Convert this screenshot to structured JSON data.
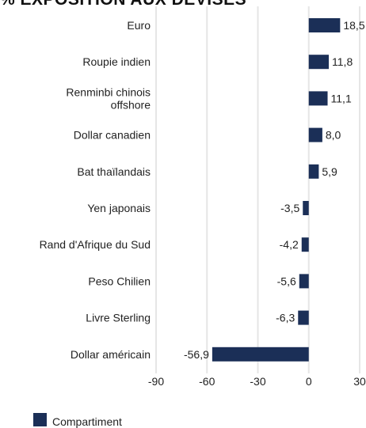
{
  "chart_data": {
    "type": "bar",
    "orientation": "horizontal",
    "title": "% EXPOSITION AUX DEVISES",
    "categories": [
      "Euro",
      "Roupie indien",
      "Renminbi chinois offshore",
      "Dollar canadien",
      "Bat thaïlandais",
      "Yen japonais",
      "Rand d'Afrique du Sud",
      "Peso Chilien",
      "Livre Sterling",
      "Dollar américain"
    ],
    "category_lines": [
      [
        "Euro"
      ],
      [
        "Roupie indien"
      ],
      [
        "Renminbi chinois",
        "offshore"
      ],
      [
        "Dollar canadien"
      ],
      [
        "Bat thaïlandais"
      ],
      [
        "Yen japonais"
      ],
      [
        "Rand d'Afrique du Sud"
      ],
      [
        "Peso Chilien"
      ],
      [
        "Livre Sterling"
      ],
      [
        "Dollar américain"
      ]
    ],
    "series": [
      {
        "name": "Compartiment",
        "values": [
          18.5,
          11.8,
          11.1,
          8.0,
          5.9,
          -3.5,
          -4.2,
          -5.6,
          -6.3,
          -56.9
        ],
        "labels": [
          "18,5",
          "11,8",
          "11,1",
          "8,0",
          "5,9",
          "-3,5",
          "-4,2",
          "-5,6",
          "-6,3",
          "-56,9"
        ]
      }
    ],
    "xlim": [
      -90,
      30
    ],
    "xticks": [
      -90,
      -60,
      -30,
      0,
      30
    ],
    "grid": true,
    "legend_position": "bottom-left"
  },
  "colors": {
    "bar": "#1b2f57",
    "grid": "#e6e6e6",
    "text": "#222222"
  }
}
